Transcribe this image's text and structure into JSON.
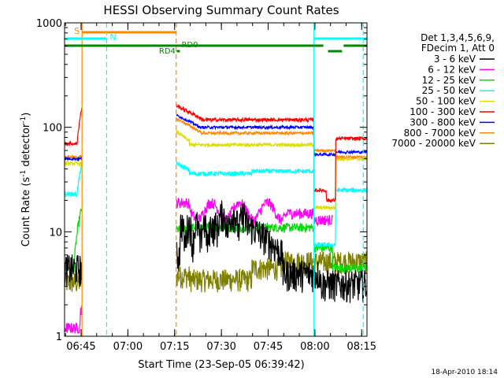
{
  "chart_data": {
    "type": "line",
    "title": "HESSI Observing Summary Count Rates",
    "xlabel": "Start Time (23-Sep-05 06:39:42)",
    "ylabel_main": "Count Rate (s",
    "ylabel_sup1": "-1",
    "ylabel_mid": " detector",
    "ylabel_sup2": "-1",
    "ylabel_end": ")",
    "y_scale": "log",
    "ylim": [
      1,
      1000
    ],
    "xlim_minutes": [
      0,
      97
    ],
    "x_ticks": [
      {
        "label": "06:45",
        "minute": 5.3
      },
      {
        "label": "07:00",
        "minute": 20.3
      },
      {
        "label": "07:15",
        "minute": 35.3
      },
      {
        "label": "07:30",
        "minute": 50.3
      },
      {
        "label": "07:45",
        "minute": 65.3
      },
      {
        "label": "08:00",
        "minute": 80.3
      },
      {
        "label": "08:15",
        "minute": 95.3
      }
    ],
    "y_ticks": [
      {
        "label": "1",
        "value": 1
      },
      {
        "label": "10",
        "value": 10
      },
      {
        "label": "100",
        "value": 100
      },
      {
        "label": "1000",
        "value": 1000
      }
    ],
    "legend_position": "right",
    "legend_header": [
      "Det 1,3,4,5,6,9,",
      "FDecim 1, Att 0"
    ],
    "series": [
      {
        "name": "3 - 6 keV",
        "color": "#000000"
      },
      {
        "name": "6 - 12 keV",
        "color": "#ff00ff"
      },
      {
        "name": "12 - 25 keV",
        "color": "#00dd00"
      },
      {
        "name": "25 - 50 keV",
        "color": "#00ffff"
      },
      {
        "name": "50 - 100 keV",
        "color": "#dddd00"
      },
      {
        "name": "100 - 300 keV",
        "color": "#ff0000"
      },
      {
        "name": "300 - 800 keV",
        "color": "#0000ff"
      },
      {
        "name": "800 - 7000 keV",
        "color": "#ff8800"
      },
      {
        "name": "7000 - 20000 keV",
        "color": "#808000"
      }
    ],
    "flag_labels": {
      "saa": "S",
      "night": "N",
      "rd0": "RD0",
      "rd4": "RD4"
    },
    "footer_date": "18-Apr-2010 18:14"
  }
}
